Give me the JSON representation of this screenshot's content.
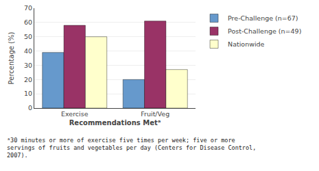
{
  "chart_data": {
    "type": "bar",
    "categories": [
      "Exercise",
      "Fruit/Veg"
    ],
    "series": [
      {
        "name": "Pre-Challenge (n=67)",
        "color": "#6699CC",
        "values": [
          39,
          20
        ]
      },
      {
        "name": "Post-Challenge (n=49)",
        "color": "#993366",
        "values": [
          58,
          61
        ]
      },
      {
        "name": "Nationwide",
        "color": "#FFFFCC",
        "values": [
          50,
          27
        ]
      }
    ],
    "xlabel": "Recommendations Metᵃ",
    "ylabel": "Percentage (%)",
    "ylim": [
      0,
      70
    ],
    "yticks": [
      0,
      10,
      20,
      30,
      40,
      50,
      60,
      70
    ],
    "grid": true,
    "legend": "upper right",
    "annotations": [
      "ᵃ30 minutes or more of exercise five times per week; five or more\nservings of fruits and vegetables per day (Centers for Disease Control,\n2007)."
    ]
  }
}
